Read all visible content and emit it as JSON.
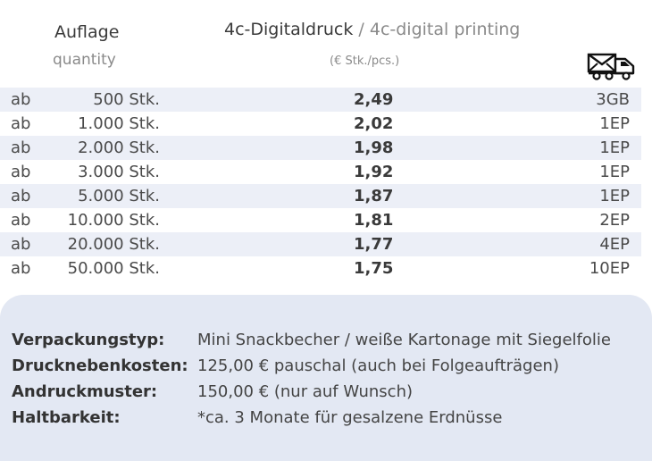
{
  "header": {
    "quantity_de": "Auflage",
    "quantity_en": "quantity",
    "printing_de": "4c-Digitaldruck",
    "printing_sep": " / ",
    "printing_en": "4c-digital printing",
    "unit": "(€ Stk./pcs.)",
    "shipping_icon": "envelope-truck-icon"
  },
  "rows": [
    {
      "prefix": "ab",
      "quantity": "500 Stk.",
      "price": "2,49",
      "shipping": "3GB"
    },
    {
      "prefix": "ab",
      "quantity": "1.000 Stk.",
      "price": "2,02",
      "shipping": "1EP"
    },
    {
      "prefix": "ab",
      "quantity": "2.000 Stk.",
      "price": "1,98",
      "shipping": "1EP"
    },
    {
      "prefix": "ab",
      "quantity": "3.000 Stk.",
      "price": "1,92",
      "shipping": "1EP"
    },
    {
      "prefix": "ab",
      "quantity": "5.000 Stk.",
      "price": "1,87",
      "shipping": "1EP"
    },
    {
      "prefix": "ab",
      "quantity": "10.000 Stk.",
      "price": "1,81",
      "shipping": "2EP"
    },
    {
      "prefix": "ab",
      "quantity": "20.000 Stk.",
      "price": "1,77",
      "shipping": "4EP"
    },
    {
      "prefix": "ab",
      "quantity": "50.000 Stk.",
      "price": "1,75",
      "shipping": "10EP"
    }
  ],
  "info": [
    {
      "label": "Verpackungstyp:",
      "value": "Mini Snackbecher / weiße Kartonage mit Siegelfolie"
    },
    {
      "label": "Drucknebenkosten:",
      "value": "125,00 € pauschal (auch bei Folgeaufträgen)"
    },
    {
      "label": "Andruckmuster:",
      "value": "150,00 € (nur auf Wunsch)"
    },
    {
      "label": "Haltbarkeit:",
      "value": "*ca. 3 Monate für gesalzene Erdnüsse"
    }
  ]
}
